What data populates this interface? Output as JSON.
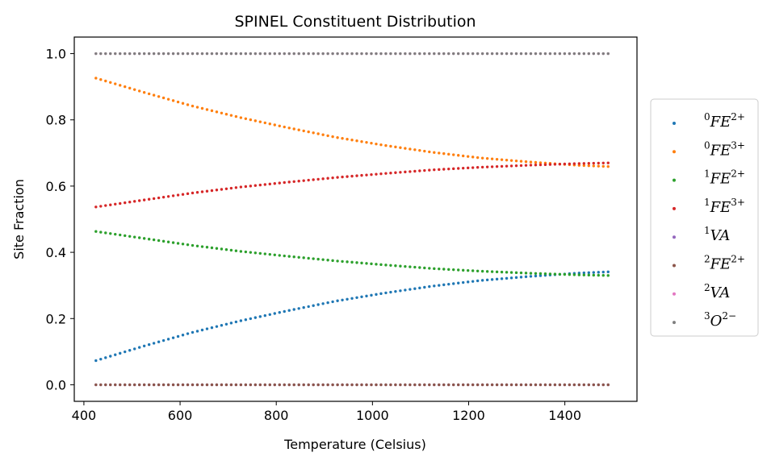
{
  "chart_data": {
    "type": "scatter",
    "title": "SPINEL Constituent Distribution",
    "xlabel": "Temperature (Celsius)",
    "ylabel": "Site Fraction",
    "xlim": [
      380,
      1550
    ],
    "ylim": [
      -0.05,
      1.05
    ],
    "xticks": [
      "400",
      "600",
      "800",
      "1000",
      "1200",
      "1400"
    ],
    "yticks": [
      "0.0",
      "0.2",
      "0.4",
      "0.6",
      "0.8",
      "1.0"
    ],
    "legend_position": "right-outside",
    "grid": false,
    "x": [
      425,
      525,
      625,
      725,
      825,
      925,
      1025,
      1125,
      1225,
      1325,
      1425,
      1490
    ],
    "series": [
      {
        "name": "⁰FE²⁺",
        "legend": {
          "pre": "0",
          "base": "FE",
          "sup": "2+"
        },
        "color": "#1f77b4",
        "values": [
          0.073,
          0.117,
          0.158,
          0.193,
          0.224,
          0.253,
          0.277,
          0.298,
          0.315,
          0.327,
          0.337,
          0.341
        ]
      },
      {
        "name": "⁰FE³⁺",
        "legend": {
          "pre": "0",
          "base": "FE",
          "sup": "3+"
        },
        "color": "#ff7f0e",
        "values": [
          0.926,
          0.883,
          0.842,
          0.807,
          0.776,
          0.747,
          0.723,
          0.702,
          0.685,
          0.673,
          0.663,
          0.659
        ]
      },
      {
        "name": "¹FE²⁺",
        "legend": {
          "pre": "1",
          "base": "FE",
          "sup": "2+"
        },
        "color": "#2ca02c",
        "values": [
          0.463,
          0.442,
          0.421,
          0.403,
          0.388,
          0.374,
          0.362,
          0.351,
          0.343,
          0.337,
          0.332,
          0.33
        ]
      },
      {
        "name": "¹FE³⁺",
        "legend": {
          "pre": "1",
          "base": "FE",
          "sup": "3+"
        },
        "color": "#d62728",
        "values": [
          0.537,
          0.558,
          0.579,
          0.597,
          0.612,
          0.626,
          0.638,
          0.649,
          0.657,
          0.663,
          0.668,
          0.67
        ]
      },
      {
        "name": "¹VA",
        "legend": {
          "pre": "1",
          "base": "VA",
          "sup": ""
        },
        "color": "#9467bd",
        "values": [
          0,
          0,
          0,
          0,
          0,
          0,
          0,
          0,
          0,
          0,
          0,
          0
        ]
      },
      {
        "name": "²FE²⁺",
        "legend": {
          "pre": "2",
          "base": "FE",
          "sup": "2+"
        },
        "color": "#8c564b",
        "values": [
          0,
          0,
          0,
          0,
          0,
          0,
          0,
          0,
          0,
          0,
          0,
          0
        ]
      },
      {
        "name": "²VA",
        "legend": {
          "pre": "2",
          "base": "VA",
          "sup": ""
        },
        "color": "#e377c2",
        "values": [
          1,
          1,
          1,
          1,
          1,
          1,
          1,
          1,
          1,
          1,
          1,
          1
        ]
      },
      {
        "name": "³O²⁻",
        "legend": {
          "pre": "3",
          "base": "O",
          "sup": "2−"
        },
        "color": "#7f7f7f",
        "values": [
          1,
          1,
          1,
          1,
          1,
          1,
          1,
          1,
          1,
          1,
          1,
          1
        ]
      }
    ]
  }
}
